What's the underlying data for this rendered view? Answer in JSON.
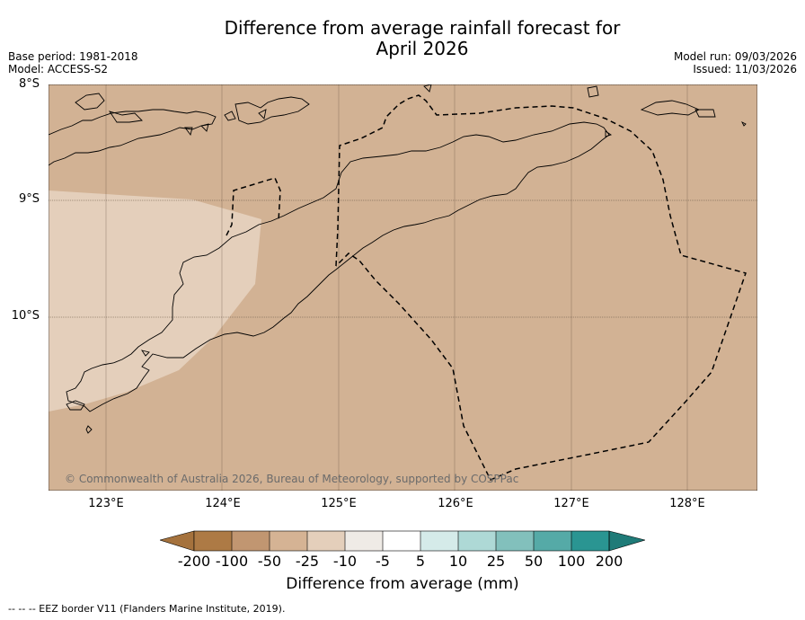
{
  "header": {
    "title_line1": "Difference from average rainfall forecast for",
    "title_line2": "April 2026",
    "base_period": "Base period: 1981-2018",
    "model": "Model: ACCESS-S2",
    "model_run": "Model run: 09/03/2026",
    "issued": "Issued: 11/03/2026"
  },
  "map": {
    "lat_labels": [
      "8°S",
      "9°S",
      "10°S"
    ],
    "lon_labels": [
      "123°E",
      "124°E",
      "125°E",
      "126°E",
      "127°E",
      "128°E"
    ],
    "copyright": "© Commonwealth of Australia 2026, Bureau of Meteorology, supported by COSPPac",
    "background_category": "-25 to -50",
    "colors": {
      "base": "#d2b294",
      "light_area": "#e4cfbb",
      "coast": "#000000"
    }
  },
  "legend": {
    "ticks": [
      "-200",
      "-100",
      "-50",
      "-25",
      "-10",
      "-5",
      "5",
      "10",
      "25",
      "50",
      "100",
      "200"
    ],
    "colors": [
      "#a5723d",
      "#ad7a45",
      "#c19671",
      "#d5b394",
      "#e4cfbb",
      "#efebe6",
      "#ffffff",
      "#d5ebe9",
      "#aed9d6",
      "#82c0bc",
      "#55aaa7",
      "#2a9592",
      "#1f7b78"
    ],
    "title": "Difference from average (mm)"
  },
  "footer": {
    "eez_legend": "--  --  -- EEZ border V11 (Flanders Marine Institute, 2019)."
  }
}
